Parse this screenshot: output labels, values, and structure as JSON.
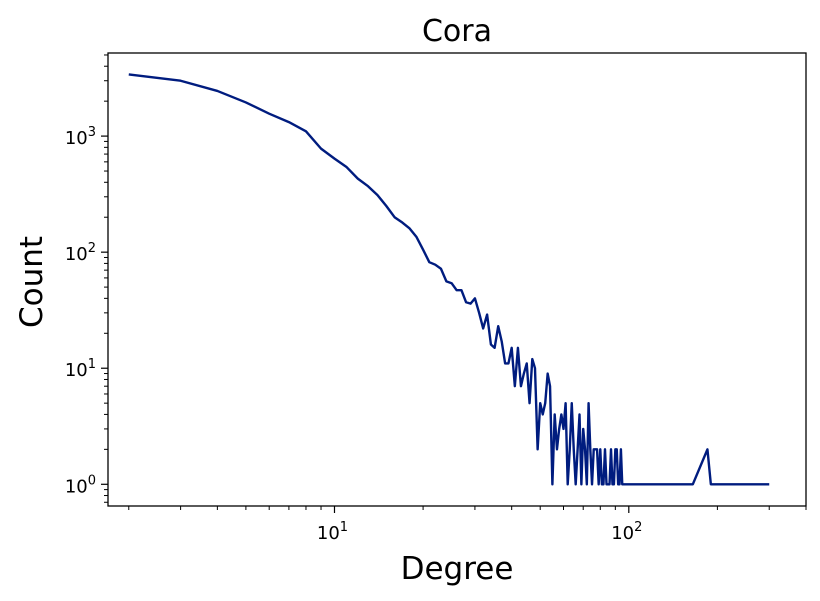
{
  "chart_data": {
    "type": "line",
    "title": "Cora",
    "xlabel": "Degree",
    "ylabel": "Count",
    "xscale": "log",
    "yscale": "log",
    "xlim": [
      1.7,
      400
    ],
    "ylim": [
      0.65,
      5200
    ],
    "grid": false,
    "color": "#001c7f",
    "x_ticks": [
      {
        "base": "10",
        "exp": "1",
        "value": 10
      },
      {
        "base": "10",
        "exp": "2",
        "value": 100
      }
    ],
    "y_ticks": [
      {
        "base": "10",
        "exp": "0",
        "value": 1
      },
      {
        "base": "10",
        "exp": "1",
        "value": 10
      },
      {
        "base": "10",
        "exp": "2",
        "value": 100
      },
      {
        "base": "10",
        "exp": "3",
        "value": 1000
      }
    ],
    "series": [
      {
        "x": [
          2,
          3,
          4,
          5,
          6,
          7,
          8,
          9,
          10,
          11,
          12,
          13,
          14,
          15,
          16,
          17,
          18,
          19,
          20,
          21,
          22,
          23,
          24,
          25,
          26,
          27,
          28,
          29,
          30,
          31,
          32,
          33,
          34,
          35,
          36,
          37,
          38,
          39,
          40,
          41,
          42,
          43,
          44,
          45,
          46,
          47,
          48,
          49,
          50,
          51,
          52,
          53,
          54,
          55,
          56,
          57,
          58,
          59,
          60,
          61,
          62,
          63,
          64,
          65,
          66,
          67,
          68,
          69,
          70,
          71,
          72,
          73,
          74,
          75,
          76,
          77,
          78,
          79,
          80,
          81,
          82,
          83,
          84,
          85,
          86,
          87,
          88,
          89,
          90,
          91,
          92,
          93,
          94,
          95,
          96,
          97,
          98,
          99,
          100,
          165,
          185,
          190,
          300
        ],
        "y": [
          3400,
          3000,
          2450,
          1950,
          1560,
          1320,
          1100,
          780,
          640,
          540,
          430,
          370,
          310,
          250,
          200,
          180,
          160,
          135,
          105,
          82,
          78,
          72,
          56,
          54,
          47,
          47,
          37,
          36,
          40,
          30,
          22,
          29,
          16,
          15,
          23,
          17,
          11,
          11,
          15,
          7,
          15,
          7,
          9,
          11,
          5,
          12,
          10,
          2,
          5,
          4,
          5,
          9,
          7,
          1,
          4,
          2,
          3,
          4,
          3,
          5,
          1,
          2,
          5,
          2,
          1,
          2,
          4,
          1,
          3,
          2,
          1,
          5,
          2,
          1,
          2,
          2,
          2,
          1,
          2,
          1,
          1,
          2,
          1,
          1,
          1,
          2,
          1,
          1,
          2,
          2,
          1,
          1,
          2,
          1,
          1,
          1,
          1,
          1,
          1,
          1,
          2,
          1,
          1
        ]
      }
    ]
  }
}
